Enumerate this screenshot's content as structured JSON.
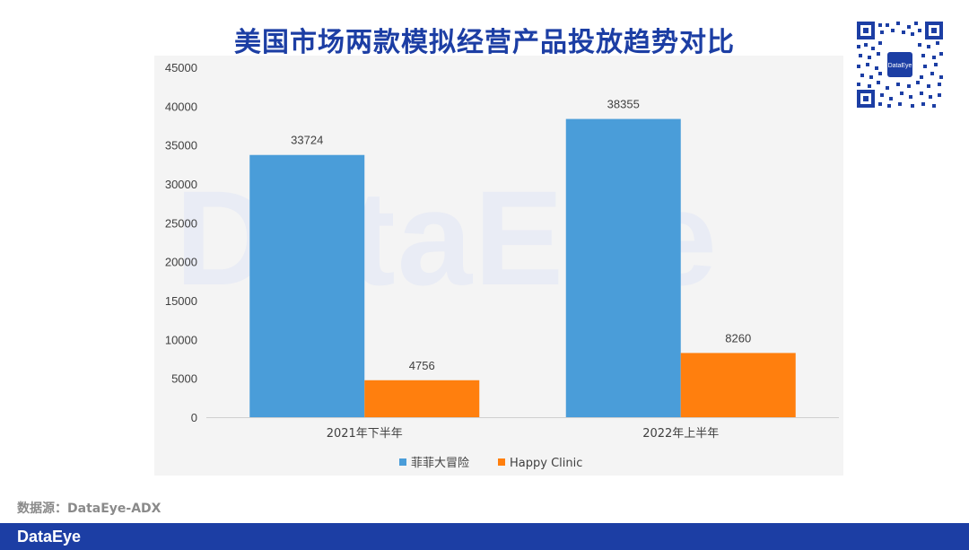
{
  "title": "美国市场两款模拟经营产品投放趋势对比",
  "watermark": "DataEye",
  "source": "数据源：DataEye-ADX",
  "footer_brand": "DataEye",
  "qr_logo_text": "DataEye",
  "colors": {
    "title": "#1c3ea4",
    "series_1": "#4a9dd9",
    "series_2": "#ff7f0e",
    "footer": "#1c3ea4"
  },
  "chart_data": {
    "type": "bar",
    "categories": [
      "2021年下半年",
      "2022年上半年"
    ],
    "series": [
      {
        "name": "菲菲大冒险",
        "values": [
          33724,
          38355
        ]
      },
      {
        "name": "Happy Clinic",
        "values": [
          4756,
          8260
        ]
      }
    ],
    "ylim": [
      0,
      45000
    ],
    "yticks": [
      0,
      5000,
      10000,
      15000,
      20000,
      25000,
      30000,
      35000,
      40000,
      45000
    ],
    "grid": false,
    "legend": "bottom",
    "data_labels": true
  }
}
